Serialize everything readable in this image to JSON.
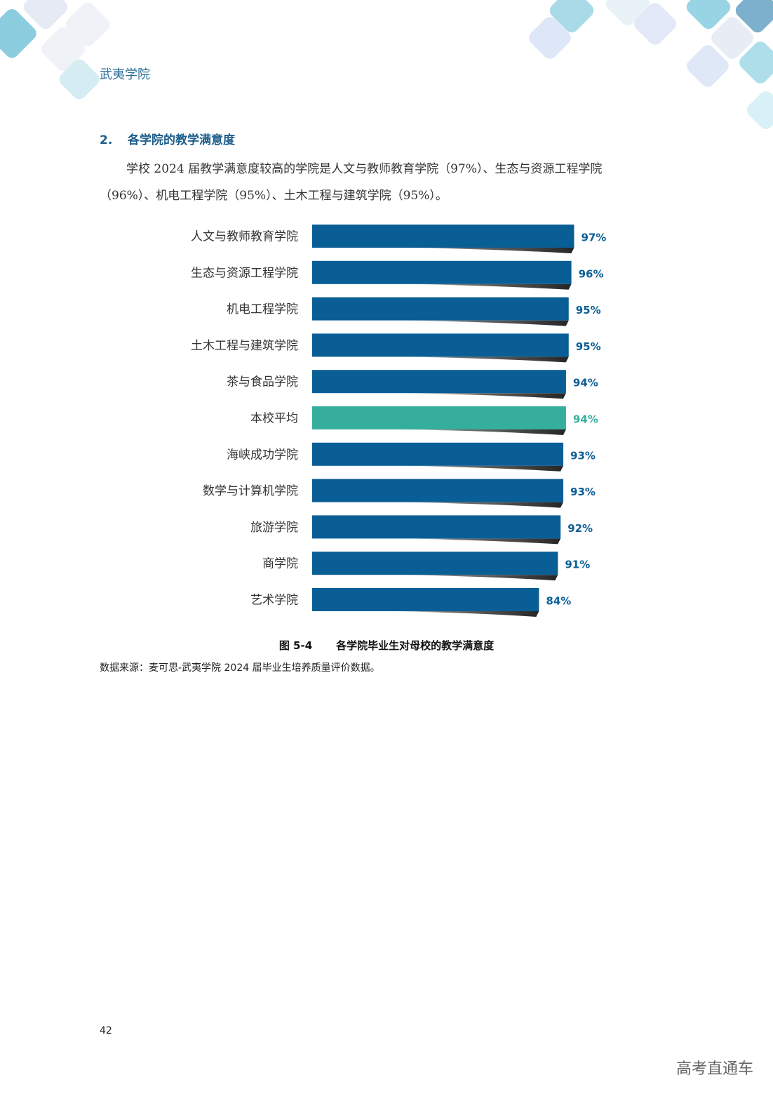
{
  "header": {
    "school": "武夷学院"
  },
  "section": {
    "number": "2.",
    "title": "各学院的教学满意度",
    "paragraph_line1": "学校 2024 届教学满意度较高的学院是人文与教师教育学院（97%）、生态与资源工程学院",
    "paragraph_line2": "（96%）、机电工程学院（95%）、土木工程与建筑学院（95%）。"
  },
  "chart_data": {
    "type": "bar",
    "orientation": "horizontal",
    "categories": [
      "人文与教师教育学院",
      "生态与资源工程学院",
      "机电工程学院",
      "土木工程与建筑学院",
      "茶与食品学院",
      "本校平均",
      "海峡成功学院",
      "数学与计算机学院",
      "旅游学院",
      "商学院",
      "艺术学院"
    ],
    "values": [
      97,
      96,
      95,
      95,
      94,
      94,
      93,
      93,
      92,
      91,
      84
    ],
    "value_labels": [
      "97%",
      "96%",
      "95%",
      "95%",
      "94%",
      "94%",
      "93%",
      "93%",
      "92%",
      "91%",
      "84%"
    ],
    "highlight_category": "本校平均",
    "colors": {
      "bar": "#0a5e96",
      "highlight": "#35ae9d",
      "label": "#0a5e96",
      "highlight_label": "#35ae9d"
    },
    "xlim": [
      0,
      100
    ],
    "grid": false,
    "legend": "none"
  },
  "caption": {
    "figure_no": "图 5-4",
    "text": "各学院毕业生对母校的教学满意度"
  },
  "source": "数据来源：麦可思-武夷学院 2024 届毕业生培养质量评价数据。",
  "page_number": "42",
  "watermark": "高考直通车"
}
